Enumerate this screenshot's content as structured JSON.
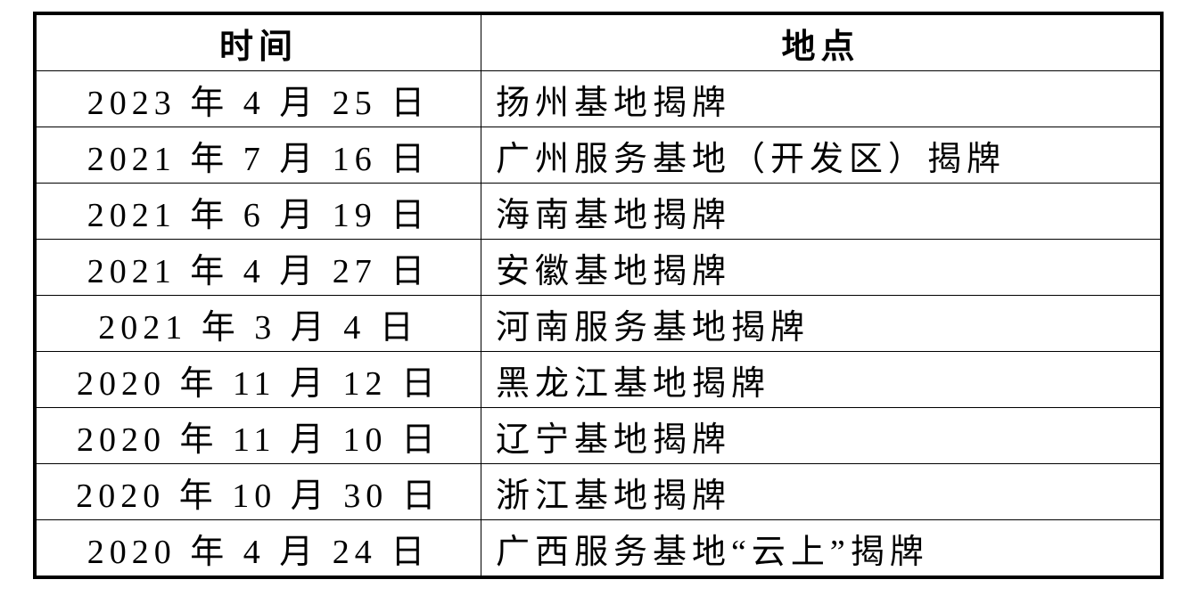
{
  "table": {
    "headers": [
      "时间",
      "地点"
    ],
    "rows": [
      {
        "time": "2023 年 4 月 25 日",
        "place": "扬州基地揭牌"
      },
      {
        "time": "2021 年 7 月 16 日",
        "place": "广州服务基地（开发区）揭牌"
      },
      {
        "time": "2021 年 6 月 19 日",
        "place": "海南基地揭牌"
      },
      {
        "time": "2021 年 4 月 27 日",
        "place": "安徽基地揭牌"
      },
      {
        "time": "2021 年 3 月 4 日",
        "place": "河南服务基地揭牌"
      },
      {
        "time": "2020 年 11 月 12 日",
        "place": "黑龙江基地揭牌"
      },
      {
        "time": "2020 年 11 月 10 日",
        "place": "辽宁基地揭牌"
      },
      {
        "time": "2020 年 10 月 30 日",
        "place": "浙江基地揭牌"
      },
      {
        "time": "2020 年 4 月 24 日",
        "place": "广西服务基地“云上”揭牌"
      }
    ]
  }
}
